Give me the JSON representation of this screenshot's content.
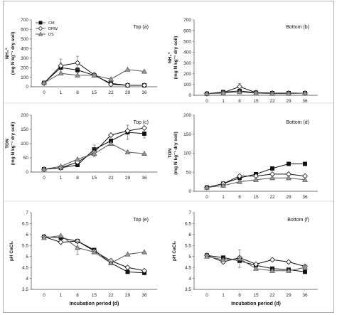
{
  "chart_data": [
    {
      "type": "line",
      "title": "Top (a)",
      "ylabel_line1": "NH₄⁺",
      "ylabel_line2": "(mg N kg⁻¹ dry soil)",
      "xlabel": "",
      "categories": [
        "0",
        "1",
        "8",
        "15",
        "22",
        "29",
        "36"
      ],
      "ylim": [
        0,
        700
      ],
      "yticks": [
        "0",
        "100",
        "200",
        "300",
        "400",
        "500",
        "600",
        "700"
      ],
      "legend": {
        "position": "top-left",
        "entries": [
          "CM",
          "DRW",
          "DS"
        ]
      },
      "series": [
        {
          "name": "CM",
          "marker": "square",
          "values": [
            40,
            200,
            175,
            120,
            35,
            15,
            15
          ],
          "errors": [
            0,
            50,
            30,
            0,
            0,
            0,
            0
          ]
        },
        {
          "name": "DRW",
          "marker": "diamond",
          "values": [
            38,
            220,
            250,
            125,
            25,
            15,
            15
          ],
          "errors": [
            0,
            70,
            70,
            0,
            0,
            0,
            0
          ]
        },
        {
          "name": "DS",
          "marker": "triangle",
          "values": [
            42,
            140,
            120,
            120,
            80,
            180,
            160
          ],
          "errors": [
            0,
            0,
            0,
            0,
            0,
            0,
            0
          ]
        }
      ]
    },
    {
      "type": "line",
      "title": "Bottom (b)",
      "ylabel_line1": "NH₄⁺",
      "ylabel_line2": "(mg N kg⁻¹ dry soil)",
      "xlabel": "",
      "categories": [
        "0",
        "1",
        "8",
        "15",
        "22",
        "29",
        "36"
      ],
      "ylim": [
        0,
        700
      ],
      "yticks": [
        "0",
        "100",
        "200",
        "300",
        "400",
        "500",
        "600",
        "700"
      ],
      "series": [
        {
          "name": "CM",
          "marker": "square",
          "values": [
            15,
            30,
            40,
            25,
            20,
            20,
            20
          ],
          "errors": [
            0,
            0,
            0,
            0,
            0,
            0,
            0
          ]
        },
        {
          "name": "DRW",
          "marker": "diamond",
          "values": [
            15,
            25,
            80,
            25,
            20,
            20,
            20
          ],
          "errors": [
            0,
            0,
            30,
            0,
            0,
            0,
            0
          ]
        },
        {
          "name": "DS",
          "marker": "triangle",
          "values": [
            15,
            20,
            30,
            20,
            15,
            15,
            20
          ],
          "errors": [
            0,
            0,
            0,
            0,
            0,
            0,
            0
          ]
        }
      ]
    },
    {
      "type": "line",
      "title": "Top (c)",
      "ylabel_line1": "TON",
      "ylabel_line2": "(mg N kg⁻¹ dry soil)",
      "xlabel": "",
      "categories": [
        "0",
        "1",
        "8",
        "15",
        "22",
        "29",
        "36"
      ],
      "ylim": [
        0,
        200
      ],
      "yticks": [
        "0",
        "50",
        "100",
        "150",
        "200"
      ],
      "series": [
        {
          "name": "CM",
          "marker": "square",
          "values": [
            10,
            15,
            25,
            80,
            110,
            140,
            135
          ],
          "errors": [
            0,
            0,
            0,
            15,
            0,
            25,
            15
          ]
        },
        {
          "name": "DRW",
          "marker": "diamond",
          "values": [
            10,
            15,
            35,
            70,
            130,
            145,
            155
          ],
          "errors": [
            0,
            0,
            0,
            15,
            0,
            0,
            0
          ]
        },
        {
          "name": "DS",
          "marker": "triangle",
          "values": [
            10,
            20,
            45,
            65,
            100,
            70,
            65
          ],
          "errors": [
            0,
            0,
            0,
            10,
            0,
            0,
            0
          ]
        }
      ]
    },
    {
      "type": "line",
      "title": "Bottom (d)",
      "ylabel_line1": "TON",
      "ylabel_line2": "(mg N kg⁻¹ dry soil)",
      "xlabel": "",
      "categories": [
        "0",
        "1",
        "8",
        "15",
        "22",
        "29",
        "36"
      ],
      "ylim": [
        0,
        200
      ],
      "yticks": [
        "0",
        "50",
        "100",
        "150",
        "200"
      ],
      "series": [
        {
          "name": "CM",
          "marker": "square",
          "values": [
            10,
            20,
            35,
            45,
            60,
            72,
            72
          ],
          "errors": [
            0,
            0,
            0,
            0,
            0,
            0,
            0
          ]
        },
        {
          "name": "DRW",
          "marker": "diamond",
          "values": [
            10,
            20,
            40,
            40,
            45,
            45,
            40
          ],
          "errors": [
            0,
            0,
            0,
            0,
            0,
            0,
            0
          ]
        },
        {
          "name": "DS",
          "marker": "triangle",
          "values": [
            10,
            15,
            25,
            30,
            35,
            35,
            30
          ],
          "errors": [
            0,
            0,
            0,
            0,
            0,
            0,
            0
          ]
        }
      ]
    },
    {
      "type": "line",
      "title": "Top (e)",
      "ylabel_line1": "pH CaCl₂",
      "ylabel_line2": "",
      "xlabel": "Incubation period (d)",
      "categories": [
        "0",
        "1",
        "8",
        "15",
        "22",
        "29",
        "36"
      ],
      "ylim": [
        3.5,
        7
      ],
      "yticks": [
        "3.5",
        "4",
        "4.5",
        "5",
        "5.5",
        "6",
        "6.5",
        "7"
      ],
      "series": [
        {
          "name": "CM",
          "marker": "square",
          "values": [
            5.9,
            5.85,
            5.7,
            5.3,
            4.7,
            4.3,
            4.25
          ],
          "errors": [
            0,
            0,
            0,
            0,
            0,
            0,
            0
          ]
        },
        {
          "name": "DRW",
          "marker": "diamond",
          "values": [
            5.9,
            5.65,
            5.7,
            5.25,
            4.8,
            4.5,
            4.35
          ],
          "errors": [
            0,
            0,
            0,
            0,
            0,
            0,
            0
          ]
        },
        {
          "name": "DS",
          "marker": "triangle",
          "values": [
            5.85,
            5.95,
            5.4,
            5.2,
            4.7,
            5.1,
            5.2
          ],
          "errors": [
            0,
            0,
            0.3,
            0,
            0,
            0,
            0
          ]
        }
      ]
    },
    {
      "type": "line",
      "title": "Bottom (f)",
      "ylabel_line1": "pH CaCl₂",
      "ylabel_line2": "",
      "xlabel": "Incubation period (d)",
      "categories": [
        "0",
        "1",
        "8",
        "15",
        "22",
        "29",
        "36"
      ],
      "ylim": [
        3.5,
        7
      ],
      "yticks": [
        "3.5",
        "4",
        "4.5",
        "5",
        "5.5",
        "6",
        "6.5",
        "7"
      ],
      "series": [
        {
          "name": "CM",
          "marker": "square",
          "values": [
            5.05,
            4.95,
            4.8,
            4.6,
            4.45,
            4.4,
            4.3
          ],
          "errors": [
            0,
            0,
            0,
            0,
            0,
            0,
            0
          ]
        },
        {
          "name": "DRW",
          "marker": "diamond",
          "values": [
            5.05,
            4.75,
            4.95,
            4.65,
            4.85,
            4.75,
            4.55
          ],
          "errors": [
            0,
            0,
            0,
            0,
            0,
            0,
            0
          ]
        },
        {
          "name": "DS",
          "marker": "triangle",
          "values": [
            5.0,
            4.85,
            4.9,
            4.45,
            4.35,
            4.35,
            4.5
          ],
          "errors": [
            0,
            0,
            0.4,
            0,
            0,
            0,
            0
          ]
        }
      ]
    }
  ]
}
